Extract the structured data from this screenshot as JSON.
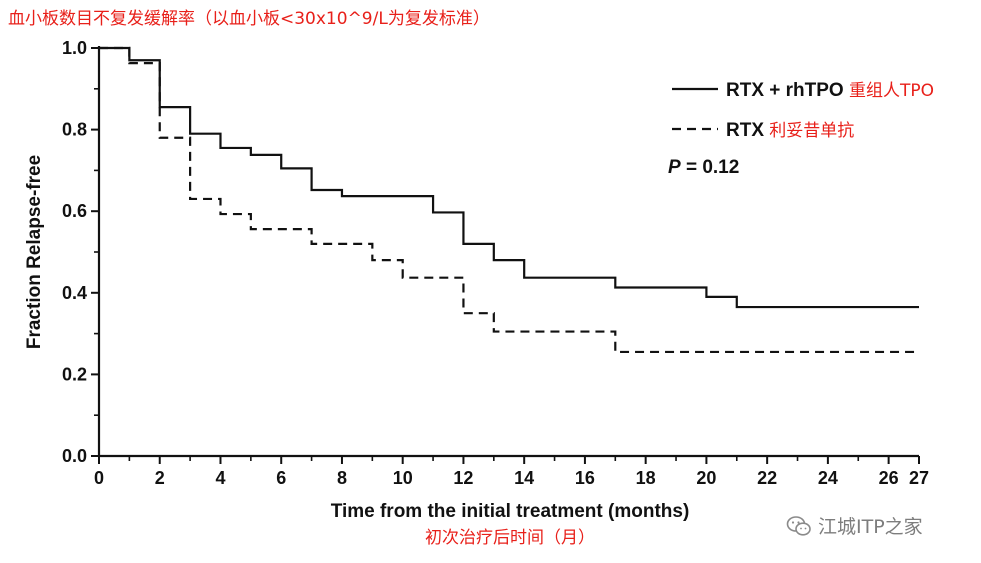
{
  "chart_data": {
    "type": "line",
    "title": "血小板数目不复发缓解率（以血小板<30x10^9/L为复发标准）",
    "ylabel": "Fraction Relapse-free",
    "xlabel": "Time from the initial treatment (months)",
    "xlabel_cn": "初次治疗后时间（月）",
    "xlim": [
      0,
      27
    ],
    "ylim": [
      0,
      1.0
    ],
    "x_ticks": [
      0,
      2,
      4,
      6,
      8,
      10,
      12,
      14,
      16,
      18,
      20,
      22,
      24,
      26,
      27
    ],
    "y_ticks": [
      0.0,
      0.2,
      0.4,
      0.6,
      0.8,
      1.0
    ],
    "x_tick_labels": [
      "0",
      "2",
      "4",
      "6",
      "8",
      "10",
      "12",
      "14",
      "16",
      "18",
      "20",
      "22",
      "24",
      "26",
      "27"
    ],
    "y_tick_labels": [
      "0.0",
      "0.2",
      "0.4",
      "0.6",
      "0.8",
      "1.0"
    ],
    "step": true,
    "series": [
      {
        "name": "RTX + rhTPO",
        "name_cn": "重组人TPO",
        "style": "solid",
        "color": "#111111",
        "x": [
          0,
          1,
          2,
          3,
          4,
          5,
          6,
          7,
          8,
          11,
          12,
          13,
          14,
          17,
          20,
          21,
          27
        ],
        "y": [
          1.0,
          0.97,
          0.855,
          0.79,
          0.755,
          0.738,
          0.705,
          0.652,
          0.637,
          0.597,
          0.52,
          0.48,
          0.437,
          0.413,
          0.39,
          0.365,
          0.365
        ]
      },
      {
        "name": "RTX",
        "name_cn": "利妥昔单抗",
        "style": "dashed",
        "color": "#111111",
        "x": [
          0,
          1,
          2,
          3,
          4,
          5,
          7,
          9,
          10,
          12,
          13,
          17,
          27
        ],
        "y": [
          1.0,
          0.963,
          0.78,
          0.63,
          0.593,
          0.556,
          0.52,
          0.48,
          0.437,
          0.35,
          0.305,
          0.255,
          0.255
        ]
      }
    ],
    "legend_position": "top-right",
    "annotation": "P = 0.12",
    "annotation_italic": "P",
    "annotation_rest": " = 0.12",
    "grid": false
  },
  "watermark": {
    "text": "江城ITP之家",
    "icon": "wechat-logo-icon"
  },
  "colors": {
    "axis": "#111111",
    "annotation_cn": "#e8201a",
    "watermark": "#7d7d7d"
  }
}
